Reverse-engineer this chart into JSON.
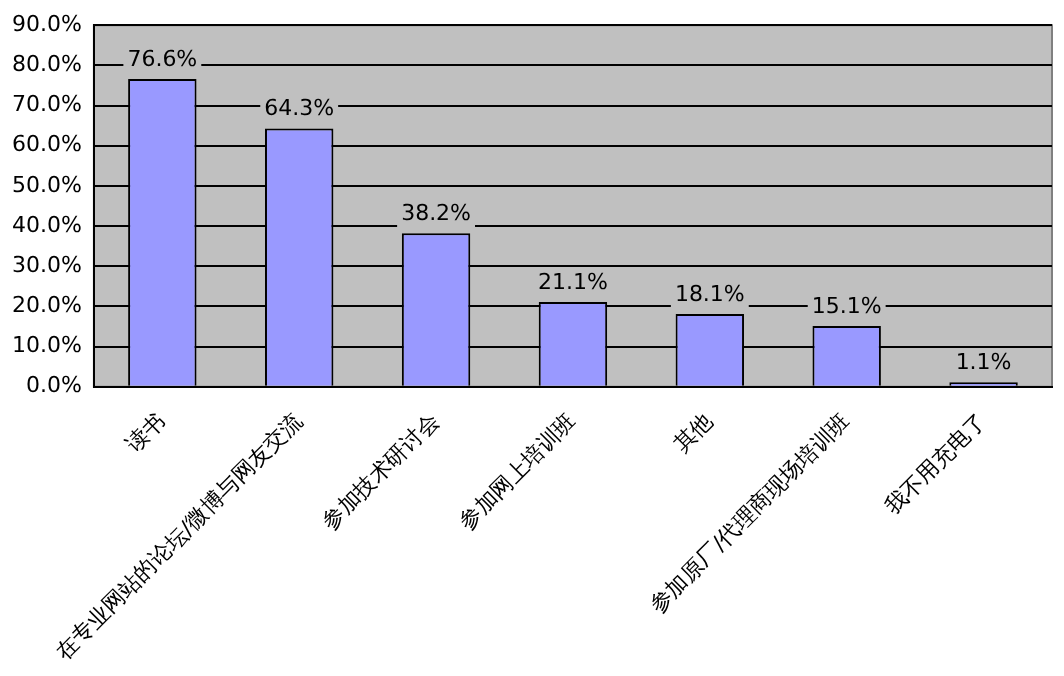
{
  "chart_data": {
    "type": "bar",
    "categories": [
      "读书",
      "在专业网站的论坛/微博与网友交流",
      "参加技术研讨会",
      "参加网上培训班",
      "其他",
      "参加原厂/代理商现场培训班",
      "我不用充电了"
    ],
    "values": [
      76.6,
      64.3,
      38.2,
      21.1,
      18.1,
      15.1,
      1.1
    ],
    "value_labels": [
      "76.6%",
      "64.3%",
      "38.2%",
      "21.1%",
      "18.1%",
      "15.1%",
      "1.1%"
    ],
    "color": "#9999ff",
    "ylim": [
      0,
      90
    ],
    "yticks": [
      {
        "value": 0,
        "label": "0.0%"
      },
      {
        "value": 10,
        "label": "10.0%"
      },
      {
        "value": 20,
        "label": "20.0%"
      },
      {
        "value": 30,
        "label": "30.0%"
      },
      {
        "value": 40,
        "label": "40.0%"
      },
      {
        "value": 50,
        "label": "50.0%"
      },
      {
        "value": 60,
        "label": "60.0%"
      },
      {
        "value": 70,
        "label": "70.0%"
      },
      {
        "value": 80,
        "label": "80.0%"
      },
      {
        "value": 90,
        "label": "90.0%"
      }
    ],
    "grid": "y",
    "legend": false
  }
}
